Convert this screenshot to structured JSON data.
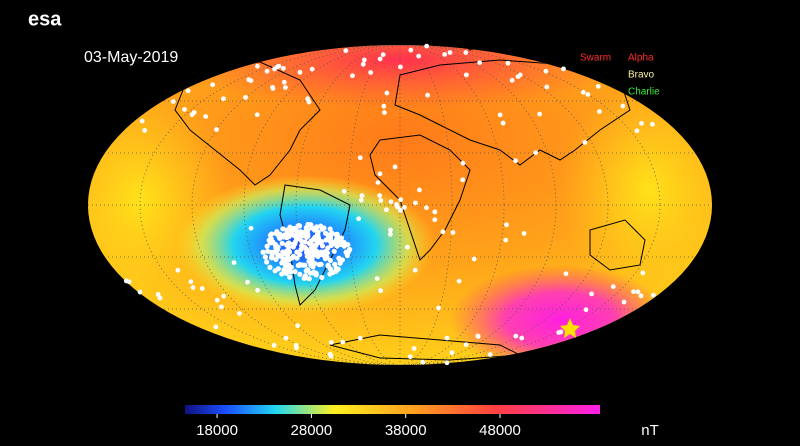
{
  "logo": "esa",
  "date": "03-May-2019",
  "legend": {
    "title": "Swarm",
    "satellites": [
      {
        "name": "Alpha",
        "color": "#ff2a2a"
      },
      {
        "name": "Bravo",
        "color": "#fff3a0"
      },
      {
        "name": "Charlie",
        "color": "#39e639"
      }
    ]
  },
  "colorbar": {
    "range": [
      14600,
      58600
    ],
    "ticks": [
      18000,
      28000,
      38000,
      48000
    ],
    "unit": "nT"
  }
}
